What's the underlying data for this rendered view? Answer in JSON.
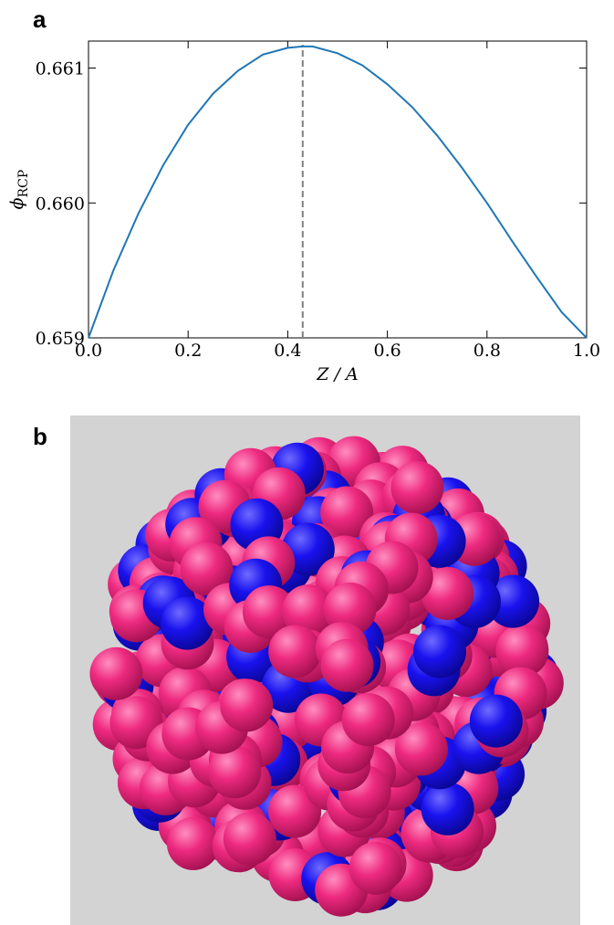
{
  "panel_labels": [
    "a",
    "b"
  ],
  "chart_data": {
    "type": "line",
    "x_label": "Z / A",
    "y_label": "ϕ",
    "y_label_sub": "RCP",
    "x": [
      0,
      0.05,
      0.1,
      0.15,
      0.2,
      0.25,
      0.3,
      0.35,
      0.4,
      0.43,
      0.45,
      0.5,
      0.55,
      0.6,
      0.65,
      0.7,
      0.75,
      0.8,
      0.85,
      0.9,
      0.95,
      1.0
    ],
    "series": [
      {
        "color": "#1f77b4",
        "values": [
          0.659,
          0.6595,
          0.65992,
          0.66028,
          0.66058,
          0.66081,
          0.66098,
          0.6611,
          0.66115,
          0.66116,
          0.66116,
          0.66111,
          0.66102,
          0.66088,
          0.66071,
          0.6605,
          0.66026,
          0.66,
          0.65972,
          0.65945,
          0.65919,
          0.659
        ]
      }
    ],
    "vline": 0.43,
    "vline_color": "#808080",
    "xlim": [
      0,
      1
    ],
    "ylim": [
      0.659,
      0.6612
    ],
    "xticks": [
      {
        "value": 0,
        "label": "0.0"
      },
      0.2,
      0.4,
      0.6,
      0.8,
      {
        "value": 1,
        "label": "1.0"
      }
    ],
    "yticks": [
      0.659,
      {
        "value": 0.66,
        "label": "0.660"
      },
      0.661
    ]
  }
}
